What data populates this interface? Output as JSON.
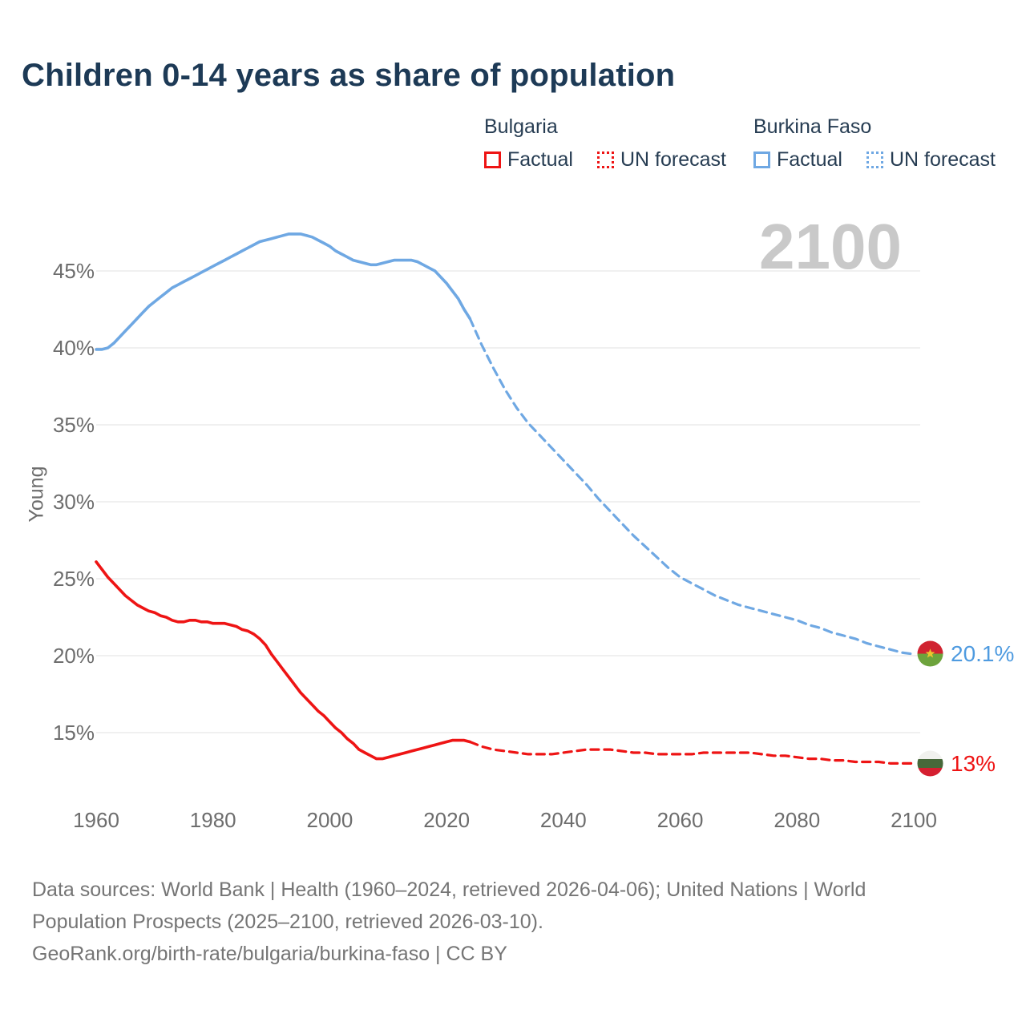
{
  "title": "Children 0-14 years as share of population",
  "colors": {
    "bulgaria": "#ee1414",
    "burkina_faso": "#6fa8e3",
    "title_text": "#1d3a56",
    "axis_text": "#6d6d6d",
    "watermark_text": "#c9c9c9",
    "gridline": "#ebebeb",
    "footer_text": "#757575"
  },
  "legend": {
    "groups": [
      {
        "name": "Bulgaria",
        "color": "#ee1414",
        "items": [
          {
            "label": "Factual",
            "style": "solid"
          },
          {
            "label": "UN forecast",
            "style": "dotted"
          }
        ]
      },
      {
        "name": "Burkina Faso",
        "color": "#6fa8e3",
        "items": [
          {
            "label": "Factual",
            "style": "solid"
          },
          {
            "label": "UN forecast",
            "style": "dotted"
          }
        ]
      }
    ]
  },
  "watermark": "2100",
  "y_axis_title": "Young",
  "endpoints": [
    {
      "series": "Burkina Faso",
      "label": "20.1%",
      "flag": "burkina-faso-flag"
    },
    {
      "series": "Bulgaria",
      "label": "13%",
      "flag": "bulgaria-flag"
    }
  ],
  "footer": {
    "line1": "Data sources: World Bank | Health (1960–2024, retrieved 2026-04-06); United Nations | World",
    "line2": "Population Prospects (2025–2100, retrieved 2026-03-10).",
    "line3": "GeoRank.org/birth-rate/bulgaria/burkina-faso | CC BY"
  },
  "chart_data": {
    "type": "line",
    "title": "Children 0-14 years as share of population",
    "xlabel": "",
    "ylabel": "Young",
    "x_ticks": [
      1960,
      1980,
      2000,
      2020,
      2040,
      2060,
      2080,
      2100
    ],
    "y_ticks": [
      15,
      20,
      25,
      30,
      35,
      40,
      45
    ],
    "y_tick_suffix": "%",
    "xlim": [
      1960,
      2100
    ],
    "ylim": [
      12.5,
      48.5
    ],
    "grid": "horizontal",
    "legend_position": "top-right",
    "series": [
      {
        "name": "Bulgaria Factual",
        "color": "#ee1414",
        "style": "solid",
        "points": [
          [
            1960,
            26.1
          ],
          [
            1961,
            25.6
          ],
          [
            1962,
            25.1
          ],
          [
            1963,
            24.7
          ],
          [
            1964,
            24.3
          ],
          [
            1965,
            23.9
          ],
          [
            1966,
            23.6
          ],
          [
            1967,
            23.3
          ],
          [
            1968,
            23.1
          ],
          [
            1969,
            22.9
          ],
          [
            1970,
            22.8
          ],
          [
            1971,
            22.6
          ],
          [
            1972,
            22.5
          ],
          [
            1973,
            22.3
          ],
          [
            1974,
            22.2
          ],
          [
            1975,
            22.2
          ],
          [
            1976,
            22.3
          ],
          [
            1977,
            22.3
          ],
          [
            1978,
            22.2
          ],
          [
            1979,
            22.2
          ],
          [
            1980,
            22.1
          ],
          [
            1981,
            22.1
          ],
          [
            1982,
            22.1
          ],
          [
            1983,
            22.0
          ],
          [
            1984,
            21.9
          ],
          [
            1985,
            21.7
          ],
          [
            1986,
            21.6
          ],
          [
            1987,
            21.4
          ],
          [
            1988,
            21.1
          ],
          [
            1989,
            20.7
          ],
          [
            1990,
            20.1
          ],
          [
            1991,
            19.6
          ],
          [
            1992,
            19.1
          ],
          [
            1993,
            18.6
          ],
          [
            1994,
            18.1
          ],
          [
            1995,
            17.6
          ],
          [
            1996,
            17.2
          ],
          [
            1997,
            16.8
          ],
          [
            1998,
            16.4
          ],
          [
            1999,
            16.1
          ],
          [
            2000,
            15.7
          ],
          [
            2001,
            15.3
          ],
          [
            2002,
            15.0
          ],
          [
            2003,
            14.6
          ],
          [
            2004,
            14.3
          ],
          [
            2005,
            13.9
          ],
          [
            2006,
            13.7
          ],
          [
            2007,
            13.5
          ],
          [
            2008,
            13.3
          ],
          [
            2009,
            13.3
          ],
          [
            2010,
            13.4
          ],
          [
            2011,
            13.5
          ],
          [
            2012,
            13.6
          ],
          [
            2013,
            13.7
          ],
          [
            2014,
            13.8
          ],
          [
            2015,
            13.9
          ],
          [
            2016,
            14.0
          ],
          [
            2017,
            14.1
          ],
          [
            2018,
            14.2
          ],
          [
            2019,
            14.3
          ],
          [
            2020,
            14.4
          ],
          [
            2021,
            14.5
          ],
          [
            2022,
            14.5
          ],
          [
            2023,
            14.5
          ],
          [
            2024,
            14.4
          ]
        ]
      },
      {
        "name": "Bulgaria UN forecast",
        "color": "#ee1414",
        "style": "dashed",
        "end_label": "13%",
        "points": [
          [
            2024,
            14.4
          ],
          [
            2026,
            14.1
          ],
          [
            2028,
            13.9
          ],
          [
            2030,
            13.8
          ],
          [
            2032,
            13.7
          ],
          [
            2034,
            13.6
          ],
          [
            2036,
            13.6
          ],
          [
            2038,
            13.6
          ],
          [
            2040,
            13.7
          ],
          [
            2042,
            13.8
          ],
          [
            2044,
            13.9
          ],
          [
            2046,
            13.9
          ],
          [
            2048,
            13.9
          ],
          [
            2050,
            13.8
          ],
          [
            2052,
            13.7
          ],
          [
            2054,
            13.7
          ],
          [
            2056,
            13.6
          ],
          [
            2058,
            13.6
          ],
          [
            2060,
            13.6
          ],
          [
            2062,
            13.6
          ],
          [
            2064,
            13.7
          ],
          [
            2066,
            13.7
          ],
          [
            2068,
            13.7
          ],
          [
            2070,
            13.7
          ],
          [
            2072,
            13.7
          ],
          [
            2074,
            13.6
          ],
          [
            2076,
            13.5
          ],
          [
            2078,
            13.5
          ],
          [
            2080,
            13.4
          ],
          [
            2082,
            13.3
          ],
          [
            2084,
            13.3
          ],
          [
            2086,
            13.2
          ],
          [
            2088,
            13.2
          ],
          [
            2090,
            13.1
          ],
          [
            2092,
            13.1
          ],
          [
            2094,
            13.1
          ],
          [
            2096,
            13.0
          ],
          [
            2098,
            13.0
          ],
          [
            2100,
            13.0
          ]
        ]
      },
      {
        "name": "Burkina Faso Factual",
        "color": "#6fa8e3",
        "style": "solid",
        "points": [
          [
            1960,
            39.9
          ],
          [
            1961,
            39.9
          ],
          [
            1962,
            40.0
          ],
          [
            1963,
            40.3
          ],
          [
            1964,
            40.7
          ],
          [
            1965,
            41.1
          ],
          [
            1966,
            41.5
          ],
          [
            1967,
            41.9
          ],
          [
            1968,
            42.3
          ],
          [
            1969,
            42.7
          ],
          [
            1970,
            43.0
          ],
          [
            1971,
            43.3
          ],
          [
            1972,
            43.6
          ],
          [
            1973,
            43.9
          ],
          [
            1974,
            44.1
          ],
          [
            1975,
            44.3
          ],
          [
            1976,
            44.5
          ],
          [
            1977,
            44.7
          ],
          [
            1978,
            44.9
          ],
          [
            1979,
            45.1
          ],
          [
            1980,
            45.3
          ],
          [
            1981,
            45.5
          ],
          [
            1982,
            45.7
          ],
          [
            1983,
            45.9
          ],
          [
            1984,
            46.1
          ],
          [
            1985,
            46.3
          ],
          [
            1986,
            46.5
          ],
          [
            1987,
            46.7
          ],
          [
            1988,
            46.9
          ],
          [
            1989,
            47.0
          ],
          [
            1990,
            47.1
          ],
          [
            1991,
            47.2
          ],
          [
            1992,
            47.3
          ],
          [
            1993,
            47.4
          ],
          [
            1994,
            47.4
          ],
          [
            1995,
            47.4
          ],
          [
            1996,
            47.3
          ],
          [
            1997,
            47.2
          ],
          [
            1998,
            47.0
          ],
          [
            1999,
            46.8
          ],
          [
            2000,
            46.6
          ],
          [
            2001,
            46.3
          ],
          [
            2002,
            46.1
          ],
          [
            2003,
            45.9
          ],
          [
            2004,
            45.7
          ],
          [
            2005,
            45.6
          ],
          [
            2006,
            45.5
          ],
          [
            2007,
            45.4
          ],
          [
            2008,
            45.4
          ],
          [
            2009,
            45.5
          ],
          [
            2010,
            45.6
          ],
          [
            2011,
            45.7
          ],
          [
            2012,
            45.7
          ],
          [
            2013,
            45.7
          ],
          [
            2014,
            45.7
          ],
          [
            2015,
            45.6
          ],
          [
            2016,
            45.4
          ],
          [
            2017,
            45.2
          ],
          [
            2018,
            45.0
          ],
          [
            2019,
            44.6
          ],
          [
            2020,
            44.2
          ],
          [
            2021,
            43.7
          ],
          [
            2022,
            43.2
          ],
          [
            2023,
            42.5
          ],
          [
            2024,
            41.9
          ]
        ]
      },
      {
        "name": "Burkina Faso UN forecast",
        "color": "#6fa8e3",
        "style": "dashed",
        "end_label": "20.1%",
        "points": [
          [
            2024,
            41.9
          ],
          [
            2026,
            40.2
          ],
          [
            2028,
            38.7
          ],
          [
            2030,
            37.3
          ],
          [
            2032,
            36.1
          ],
          [
            2034,
            35.1
          ],
          [
            2036,
            34.3
          ],
          [
            2038,
            33.5
          ],
          [
            2040,
            32.7
          ],
          [
            2042,
            31.9
          ],
          [
            2044,
            31.1
          ],
          [
            2046,
            30.2
          ],
          [
            2048,
            29.4
          ],
          [
            2050,
            28.6
          ],
          [
            2052,
            27.8
          ],
          [
            2054,
            27.1
          ],
          [
            2056,
            26.4
          ],
          [
            2058,
            25.7
          ],
          [
            2060,
            25.1
          ],
          [
            2062,
            24.7
          ],
          [
            2064,
            24.3
          ],
          [
            2066,
            23.9
          ],
          [
            2068,
            23.6
          ],
          [
            2070,
            23.3
          ],
          [
            2072,
            23.1
          ],
          [
            2074,
            22.9
          ],
          [
            2076,
            22.7
          ],
          [
            2078,
            22.5
          ],
          [
            2080,
            22.3
          ],
          [
            2082,
            22.0
          ],
          [
            2084,
            21.8
          ],
          [
            2086,
            21.5
          ],
          [
            2088,
            21.3
          ],
          [
            2090,
            21.1
          ],
          [
            2092,
            20.8
          ],
          [
            2094,
            20.6
          ],
          [
            2096,
            20.4
          ],
          [
            2098,
            20.2
          ],
          [
            2100,
            20.1
          ]
        ]
      }
    ]
  }
}
